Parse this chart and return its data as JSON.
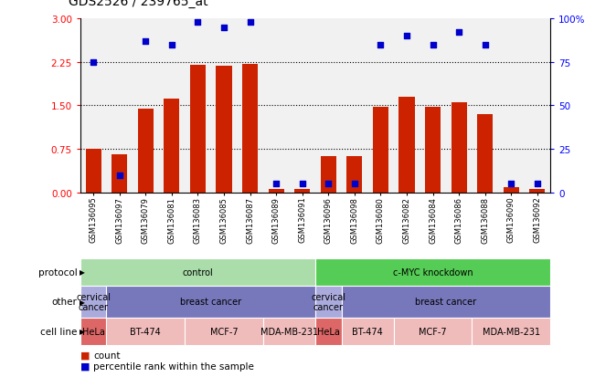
{
  "title": "GDS2526 / 239765_at",
  "samples": [
    "GSM136095",
    "GSM136097",
    "GSM136079",
    "GSM136081",
    "GSM136083",
    "GSM136085",
    "GSM136087",
    "GSM136089",
    "GSM136091",
    "GSM136096",
    "GSM136098",
    "GSM136080",
    "GSM136082",
    "GSM136084",
    "GSM136086",
    "GSM136088",
    "GSM136090",
    "GSM136092"
  ],
  "count_values": [
    0.75,
    0.65,
    1.45,
    1.62,
    2.2,
    2.18,
    2.22,
    0.05,
    0.05,
    0.62,
    0.62,
    1.47,
    1.65,
    1.48,
    1.55,
    1.35,
    0.08,
    0.05
  ],
  "percentile_values": [
    75,
    10,
    87,
    85,
    98,
    95,
    98,
    5,
    5,
    5,
    5,
    85,
    90,
    85,
    92,
    85,
    5,
    5
  ],
  "ylim": [
    0,
    3
  ],
  "yticks_left": [
    0,
    0.75,
    1.5,
    2.25,
    3
  ],
  "yticks_right_vals": [
    0,
    25,
    50,
    75,
    100
  ],
  "yticks_right_labels": [
    "0",
    "25",
    "50",
    "75",
    "100%"
  ],
  "bar_color": "#cc2200",
  "dot_color": "#0000cc",
  "protocol_groups": [
    {
      "label": "control",
      "start": 0,
      "end": 9,
      "color": "#aaddaa"
    },
    {
      "label": "c-MYC knockdown",
      "start": 9,
      "end": 18,
      "color": "#55cc55"
    }
  ],
  "other_groups": [
    {
      "label": "cervical\ncancer",
      "start": 0,
      "end": 1,
      "color": "#aaaadd"
    },
    {
      "label": "breast cancer",
      "start": 1,
      "end": 9,
      "color": "#7777bb"
    },
    {
      "label": "cervical\ncancer",
      "start": 9,
      "end": 10,
      "color": "#aaaadd"
    },
    {
      "label": "breast cancer",
      "start": 10,
      "end": 18,
      "color": "#7777bb"
    }
  ],
  "cellline_groups": [
    {
      "label": "HeLa",
      "start": 0,
      "end": 1,
      "color": "#dd6666"
    },
    {
      "label": "BT-474",
      "start": 1,
      "end": 4,
      "color": "#f0bbbb"
    },
    {
      "label": "MCF-7",
      "start": 4,
      "end": 7,
      "color": "#f0bbbb"
    },
    {
      "label": "MDA-MB-231",
      "start": 7,
      "end": 9,
      "color": "#f0bbbb"
    },
    {
      "label": "HeLa",
      "start": 9,
      "end": 10,
      "color": "#dd6666"
    },
    {
      "label": "BT-474",
      "start": 10,
      "end": 12,
      "color": "#f0bbbb"
    },
    {
      "label": "MCF-7",
      "start": 12,
      "end": 15,
      "color": "#f0bbbb"
    },
    {
      "label": "MDA-MB-231",
      "start": 15,
      "end": 18,
      "color": "#f0bbbb"
    }
  ],
  "row_labels": [
    "protocol",
    "other",
    "cell line"
  ],
  "legend_count_label": "count",
  "legend_pct_label": "percentile rank within the sample"
}
